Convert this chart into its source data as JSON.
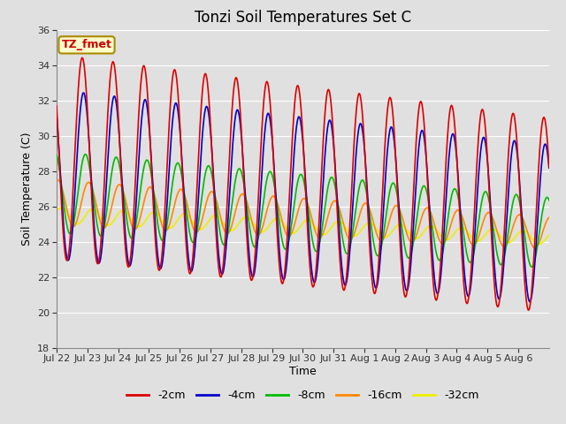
{
  "title": "Tonzi Soil Temperatures Set C",
  "xlabel": "Time",
  "ylabel": "Soil Temperature (C)",
  "ylim": [
    18,
    36
  ],
  "yticks": [
    18,
    20,
    22,
    24,
    26,
    28,
    30,
    32,
    34,
    36
  ],
  "series_colors": [
    "#dd0000",
    "#0000cc",
    "#00bb00",
    "#ff8800",
    "#eeee00"
  ],
  "series_labels": [
    "-2cm",
    "-4cm",
    "-8cm",
    "-16cm",
    "-32cm"
  ],
  "background_color": "#e0e0e0",
  "grid_color": "#ffffff",
  "annotation_text": "TZ_fmet",
  "annotation_bg": "#ffffcc",
  "annotation_border": "#aa8800",
  "title_fontsize": 12,
  "tick_label_fontsize": 8,
  "axis_label_fontsize": 9,
  "legend_fontsize": 9,
  "xtick_labels": [
    "Jul 22",
    "Jul 23",
    "Jul 24",
    "Jul 25",
    "Jul 26",
    "Jul 27",
    "Jul 28",
    "Jul 29",
    "Jul 30",
    "Jul 31",
    "Aug 1",
    "Aug 2",
    "Aug 3",
    "Aug 4",
    "Aug 5",
    "Aug 6"
  ],
  "n_points": 3840,
  "period_hours": 24,
  "depths_amplitude_start": [
    5.8,
    4.8,
    2.3,
    1.3,
    0.45
  ],
  "depths_amplitude_end": [
    5.5,
    4.5,
    2.0,
    0.9,
    0.35
  ],
  "depths_mean_start": [
    28.8,
    27.8,
    26.8,
    26.2,
    25.5
  ],
  "depths_mean_end": [
    25.5,
    25.0,
    24.5,
    24.5,
    24.2
  ],
  "depths_phase_hours": [
    0.0,
    1.0,
    2.5,
    5.0,
    8.0
  ],
  "linewidths": [
    1.2,
    1.2,
    1.2,
    1.2,
    1.2
  ]
}
